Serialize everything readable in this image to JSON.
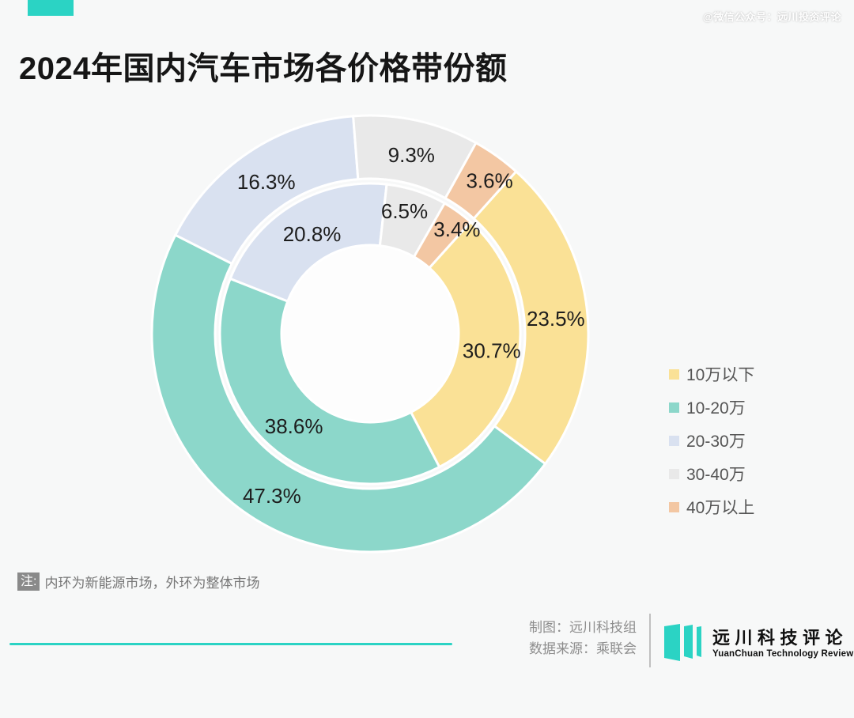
{
  "watermark": {
    "text": "@微信公众号：远川投资评论"
  },
  "title": {
    "text": "2024年国内汽车市场各价格带份额"
  },
  "note": {
    "prefix": "注:",
    "text": "内环为新能源市场，外环为整体市场"
  },
  "footer": {
    "credit_line1": "制图：远川科技组",
    "credit_line2": "数据来源：乘联会",
    "logo_cn": "远川科技评论",
    "logo_en": "YuanChuan Technology Review"
  },
  "chart_data": {
    "type": "pie",
    "subtype": "nested-donut",
    "title": "2024年国内汽车市场各价格带份额",
    "categories": [
      "10万以下",
      "10-20万",
      "20-30万",
      "30-40万",
      "40万以上"
    ],
    "colors": [
      "#FAE196",
      "#8CD7CA",
      "#D9E1F0",
      "#E9E9E9",
      "#F3C7A3"
    ],
    "series": [
      {
        "name": "新能源市场",
        "ring": "inner",
        "values": [
          30.7,
          38.6,
          20.8,
          6.5,
          3.4
        ]
      },
      {
        "name": "整体市场",
        "ring": "outer",
        "values": [
          23.5,
          47.3,
          16.3,
          9.3,
          3.6
        ]
      }
    ],
    "unit": "%",
    "start_angle_deg_clockwise_from_top": 42,
    "legend_position": "right",
    "accent_color": "#2BD3C4",
    "label_color": "#1d1d1d",
    "background_color": "#f7f8f8"
  }
}
